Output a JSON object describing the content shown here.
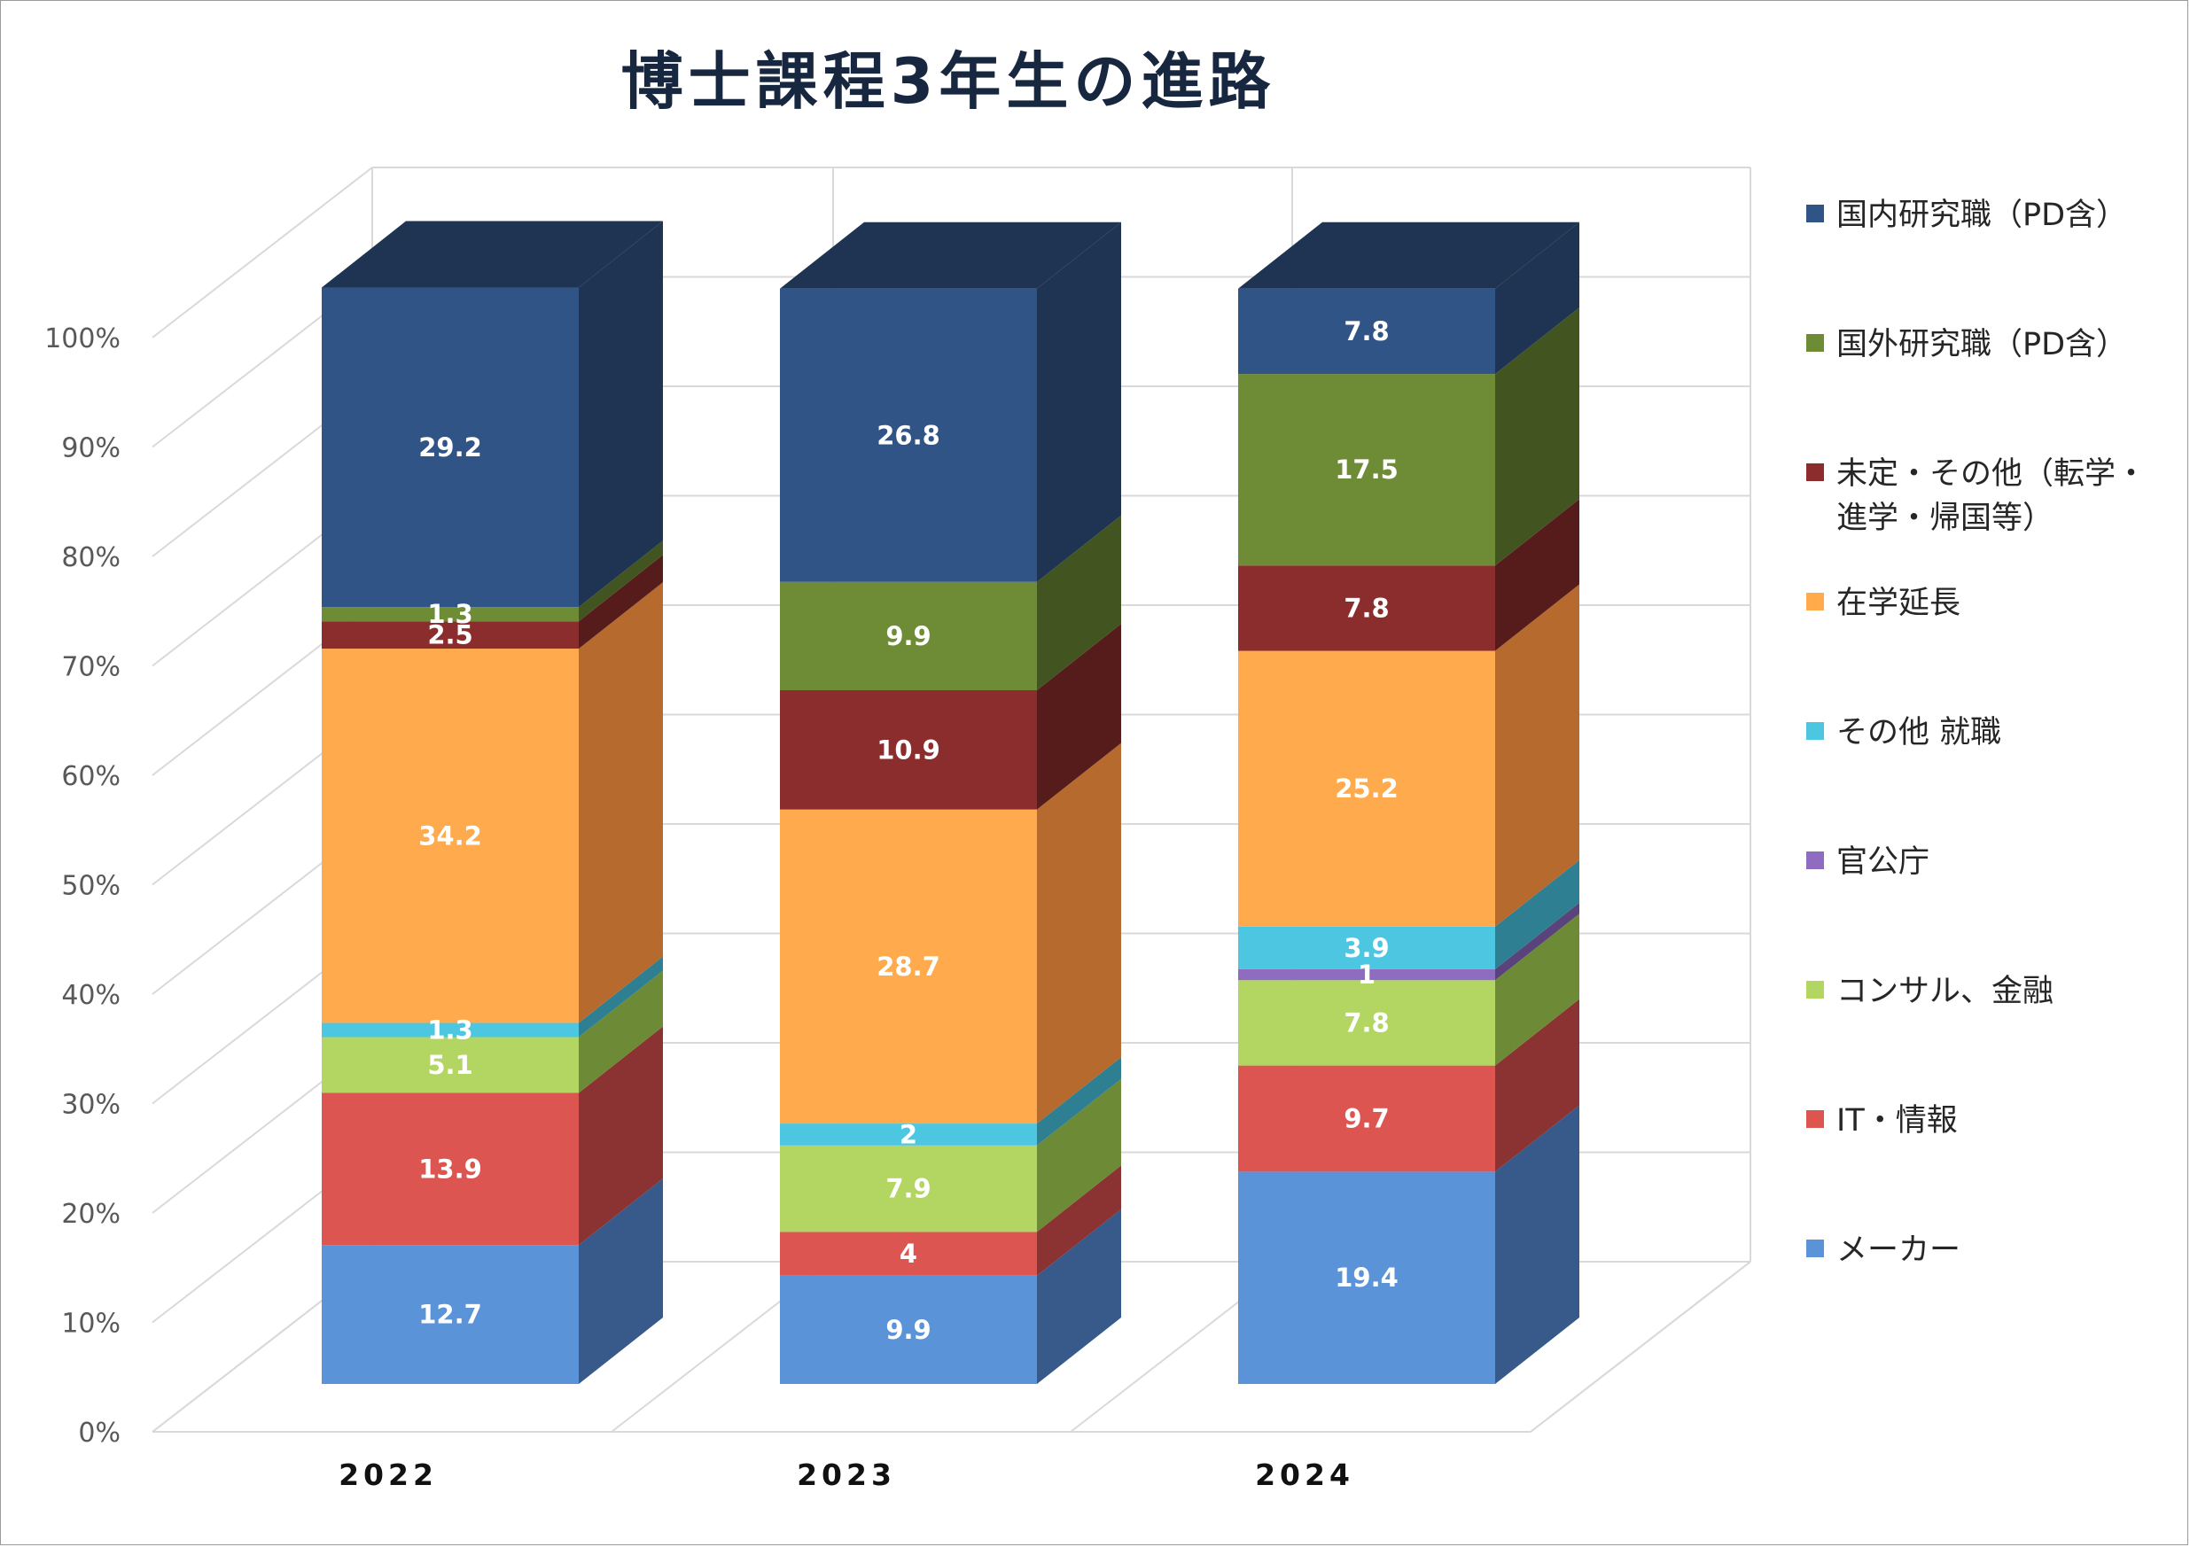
{
  "chart_data": {
    "type": "bar",
    "stacked": true,
    "three_d": true,
    "title": "博士課程3年生の進路",
    "categories": [
      "2022",
      "2023",
      "2024"
    ],
    "ylim": [
      0,
      100
    ],
    "yticks": [
      "0%",
      "10%",
      "20%",
      "30%",
      "40%",
      "50%",
      "60%",
      "70%",
      "80%",
      "90%",
      "100%"
    ],
    "grid": true,
    "legend_position": "right",
    "series": [
      {
        "name": "メーカー",
        "color": "#5b93d9",
        "side": "#375a8a",
        "values": [
          12.7,
          9.9,
          19.4
        ]
      },
      {
        "name": "IT・情報",
        "color": "#dd5551",
        "side": "#8b3232",
        "values": [
          13.9,
          4,
          9.7
        ]
      },
      {
        "name": "コンサル、金融",
        "color": "#b3d561",
        "side": "#6d8b36",
        "values": [
          5.1,
          7.9,
          7.8
        ]
      },
      {
        "name": "官公庁",
        "color": "#8e6cbf",
        "side": "#5a437a",
        "values": [
          null,
          null,
          1
        ]
      },
      {
        "name": "その他 就職",
        "color": "#4dc6e1",
        "side": "#2e7f92",
        "values": [
          1.3,
          2,
          3.9
        ]
      },
      {
        "name": "在学延長",
        "color": "#ffaa4c",
        "side": "#b66a2d",
        "values": [
          34.2,
          28.7,
          25.2
        ]
      },
      {
        "name": "未定・その他（転学・進学・帰国等）",
        "color": "#8a2d2c",
        "side": "#561c1c",
        "values": [
          2.5,
          10.9,
          7.8
        ]
      },
      {
        "name": "国外研究職（PD含）",
        "color": "#6e8b35",
        "side": "#425520",
        "values": [
          1.3,
          9.9,
          17.5
        ]
      },
      {
        "name": "国内研究職（PD含）",
        "color": "#305486",
        "side": "#1f3452",
        "values": [
          29.2,
          26.8,
          7.8
        ]
      }
    ]
  },
  "legend": {
    "items": [
      {
        "label": "国内研究職（PD含）",
        "color": "#305486"
      },
      {
        "label": "国外研究職（PD含）",
        "color": "#6e8b35"
      },
      {
        "label": "未定・その他（転学・進学・帰国等）",
        "color": "#8a2d2c"
      },
      {
        "label": "在学延長",
        "color": "#ffaa4c"
      },
      {
        "label": "その他 就職",
        "color": "#4dc6e1"
      },
      {
        "label": "官公庁",
        "color": "#8e6cbf"
      },
      {
        "label": "コンサル、金融",
        "color": "#b3d561"
      },
      {
        "label": "IT・情報",
        "color": "#dd5551"
      },
      {
        "label": "メーカー",
        "color": "#5b93d9"
      }
    ]
  }
}
